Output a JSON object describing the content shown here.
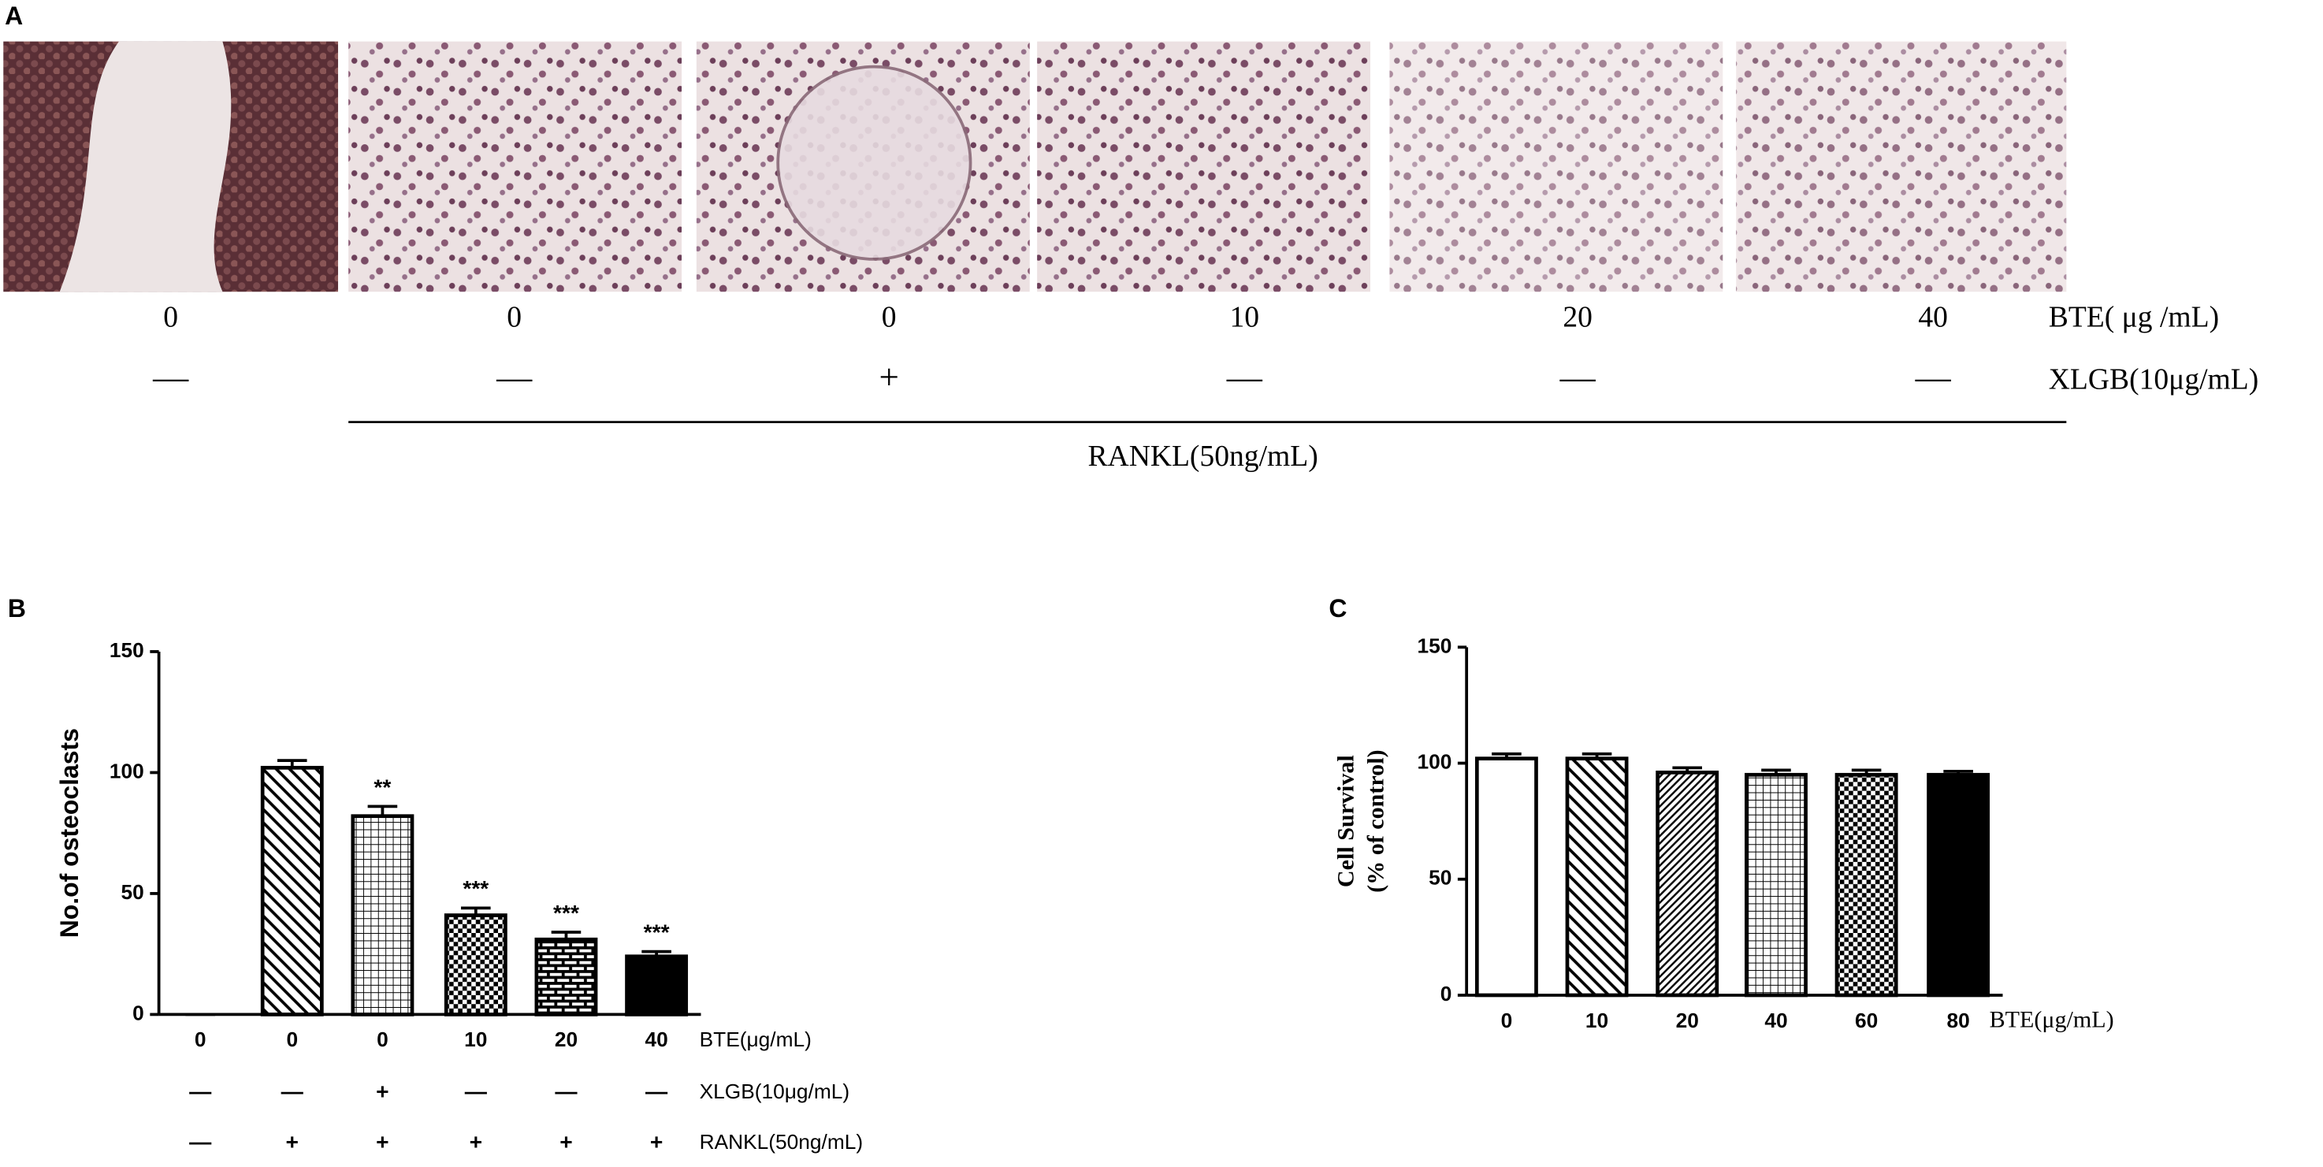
{
  "panel_a": {
    "label": "A",
    "bte_values": [
      0,
      0,
      0,
      10,
      20,
      40
    ],
    "bte_label": "BTE( μg /mL)",
    "xlgb": [
      "—",
      "—",
      "+",
      "—",
      "—",
      "—"
    ],
    "xlgb_label": "XLGB(10μg/mL)",
    "rankl_label": "RANKL(50ng/mL)"
  },
  "chart_data": [
    {
      "type": "bar",
      "label": "B",
      "ylabel": "No.of osteoclasts",
      "categories": [
        "0",
        "0",
        "0",
        "10",
        "20",
        "40"
      ],
      "xlabel": "BTE(μg/mL)",
      "values": [
        0,
        102,
        82,
        41,
        31,
        24
      ],
      "errors": [
        0,
        3,
        4,
        3,
        3,
        2
      ],
      "significance": [
        null,
        null,
        "**",
        "***",
        "***",
        "***"
      ],
      "rows": [
        {
          "label": "XLGB(10μg/mL)",
          "marks": [
            "—",
            "—",
            "+",
            "—",
            "—",
            "—"
          ]
        },
        {
          "label": "RANKL(50ng/mL)",
          "marks": [
            "—",
            "+",
            "+",
            "+",
            "+",
            "+"
          ]
        }
      ],
      "patterns": [
        "white",
        "diag-back",
        "grid",
        "checker",
        "brick",
        "solid"
      ],
      "ylim": [
        0,
        150
      ],
      "yticks": [
        0,
        50,
        100,
        150
      ]
    },
    {
      "type": "bar",
      "label": "C",
      "ylabel": [
        "Cell Survival",
        "(% of control)"
      ],
      "categories": [
        "0",
        "10",
        "20",
        "40",
        "60",
        "80"
      ],
      "xlabel": "BTE(μg/mL)",
      "values": [
        102,
        102,
        96,
        95,
        95,
        95
      ],
      "errors": [
        2,
        2,
        2,
        2,
        2,
        1.5
      ],
      "patterns": [
        "white",
        "diag-back",
        "diag-fwd",
        "grid",
        "checker",
        "solid"
      ],
      "ylim": [
        0,
        150
      ],
      "yticks": [
        0,
        50,
        100,
        150
      ]
    }
  ]
}
